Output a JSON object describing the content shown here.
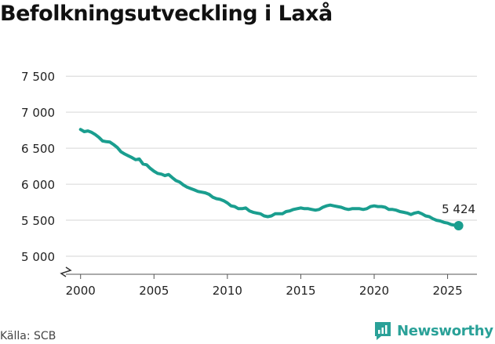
{
  "chart_data": {
    "type": "line",
    "title": "Befolkningsutveckling i Laxå",
    "xlabel": "",
    "ylabel": "",
    "xlim": [
      1999,
      2027
    ],
    "ylim": [
      4750,
      7600
    ],
    "y_axis_break": true,
    "x_ticks": [
      2000,
      2005,
      2010,
      2015,
      2020,
      2025
    ],
    "x_tick_labels": [
      "2000",
      "2005",
      "2010",
      "2015",
      "2020",
      "2025"
    ],
    "y_ticks": [
      5000,
      5500,
      6000,
      6500,
      7000,
      7500
    ],
    "y_tick_labels": [
      "5 000",
      "5 500",
      "6 000",
      "6 500",
      "7 000",
      "7 500"
    ],
    "grid": true,
    "series": [
      {
        "name": "Befolkning",
        "color": "#1a9e8f",
        "x": [
          2000.0,
          2000.25,
          2000.5,
          2000.75,
          2001.0,
          2001.25,
          2001.5,
          2001.75,
          2002.0,
          2002.25,
          2002.5,
          2002.75,
          2003.0,
          2003.25,
          2003.5,
          2003.75,
          2004.0,
          2004.25,
          2004.5,
          2004.75,
          2005.0,
          2005.25,
          2005.5,
          2005.75,
          2006.0,
          2006.25,
          2006.5,
          2006.75,
          2007.0,
          2007.25,
          2007.5,
          2007.75,
          2008.0,
          2008.25,
          2008.5,
          2008.75,
          2009.0,
          2009.25,
          2009.5,
          2009.75,
          2010.0,
          2010.25,
          2010.5,
          2010.75,
          2011.0,
          2011.25,
          2011.5,
          2011.75,
          2012.0,
          2012.25,
          2012.5,
          2012.75,
          2013.0,
          2013.25,
          2013.5,
          2013.75,
          2014.0,
          2014.25,
          2014.5,
          2014.75,
          2015.0,
          2015.25,
          2015.5,
          2015.75,
          2016.0,
          2016.25,
          2016.5,
          2016.75,
          2017.0,
          2017.25,
          2017.5,
          2017.75,
          2018.0,
          2018.25,
          2018.5,
          2018.75,
          2019.0,
          2019.25,
          2019.5,
          2019.75,
          2020.0,
          2020.25,
          2020.5,
          2020.75,
          2021.0,
          2021.25,
          2021.5,
          2021.75,
          2022.0,
          2022.25,
          2022.5,
          2022.75,
          2023.0,
          2023.25,
          2023.5,
          2023.75,
          2024.0,
          2024.25,
          2024.5,
          2024.75,
          2025.0,
          2025.25,
          2025.5,
          2025.75
        ],
        "values": [
          6760,
          6730,
          6740,
          6720,
          6690,
          6650,
          6600,
          6590,
          6585,
          6550,
          6510,
          6450,
          6420,
          6395,
          6370,
          6340,
          6350,
          6280,
          6270,
          6220,
          6180,
          6150,
          6140,
          6120,
          6135,
          6090,
          6050,
          6030,
          5990,
          5960,
          5940,
          5920,
          5900,
          5890,
          5880,
          5860,
          5820,
          5800,
          5790,
          5770,
          5740,
          5700,
          5690,
          5660,
          5660,
          5670,
          5630,
          5610,
          5600,
          5590,
          5560,
          5550,
          5560,
          5590,
          5590,
          5590,
          5620,
          5630,
          5650,
          5660,
          5670,
          5660,
          5660,
          5650,
          5640,
          5650,
          5680,
          5700,
          5710,
          5700,
          5690,
          5680,
          5660,
          5650,
          5660,
          5660,
          5660,
          5650,
          5660,
          5690,
          5700,
          5690,
          5690,
          5680,
          5650,
          5650,
          5640,
          5620,
          5610,
          5600,
          5580,
          5600,
          5610,
          5590,
          5560,
          5550,
          5520,
          5500,
          5490,
          5470,
          5460,
          5440,
          5430,
          5424
        ]
      }
    ],
    "annotations": [
      {
        "x": 2025.75,
        "y": 5424,
        "label": "5 424"
      }
    ]
  },
  "source_label": "Källa: SCB",
  "brand_name": "Newsworthy"
}
